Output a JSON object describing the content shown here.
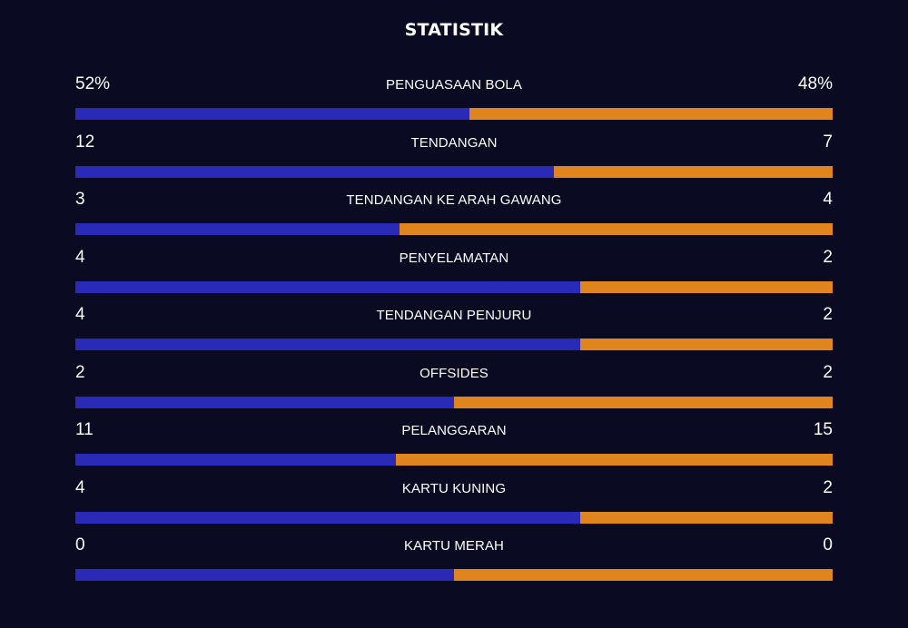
{
  "title": "STATISTIK",
  "colors": {
    "background": "#0a0a23",
    "home": "#2a2ab8",
    "away": "#e0851e",
    "text": "#ffffff"
  },
  "stats": [
    {
      "label": "PENGUASAAN BOLA",
      "home": "52%",
      "away": "48%",
      "home_value": 52,
      "away_value": 48
    },
    {
      "label": "TENDANGAN",
      "home": "12",
      "away": "7",
      "home_value": 12,
      "away_value": 7
    },
    {
      "label": "TENDANGAN KE ARAH GAWANG",
      "home": "3",
      "away": "4",
      "home_value": 3,
      "away_value": 4
    },
    {
      "label": "PENYELAMATAN",
      "home": "4",
      "away": "2",
      "home_value": 4,
      "away_value": 2
    },
    {
      "label": "TENDANGAN PENJURU",
      "home": "4",
      "away": "2",
      "home_value": 4,
      "away_value": 2
    },
    {
      "label": "OFFSIDES",
      "home": "2",
      "away": "2",
      "home_value": 2,
      "away_value": 2
    },
    {
      "label": "PELANGGARAN",
      "home": "11",
      "away": "15",
      "home_value": 11,
      "away_value": 15
    },
    {
      "label": "KARTU KUNING",
      "home": "4",
      "away": "2",
      "home_value": 4,
      "away_value": 2
    },
    {
      "label": "KARTU MERAH",
      "home": "0",
      "away": "0",
      "home_value": 0,
      "away_value": 0
    }
  ]
}
